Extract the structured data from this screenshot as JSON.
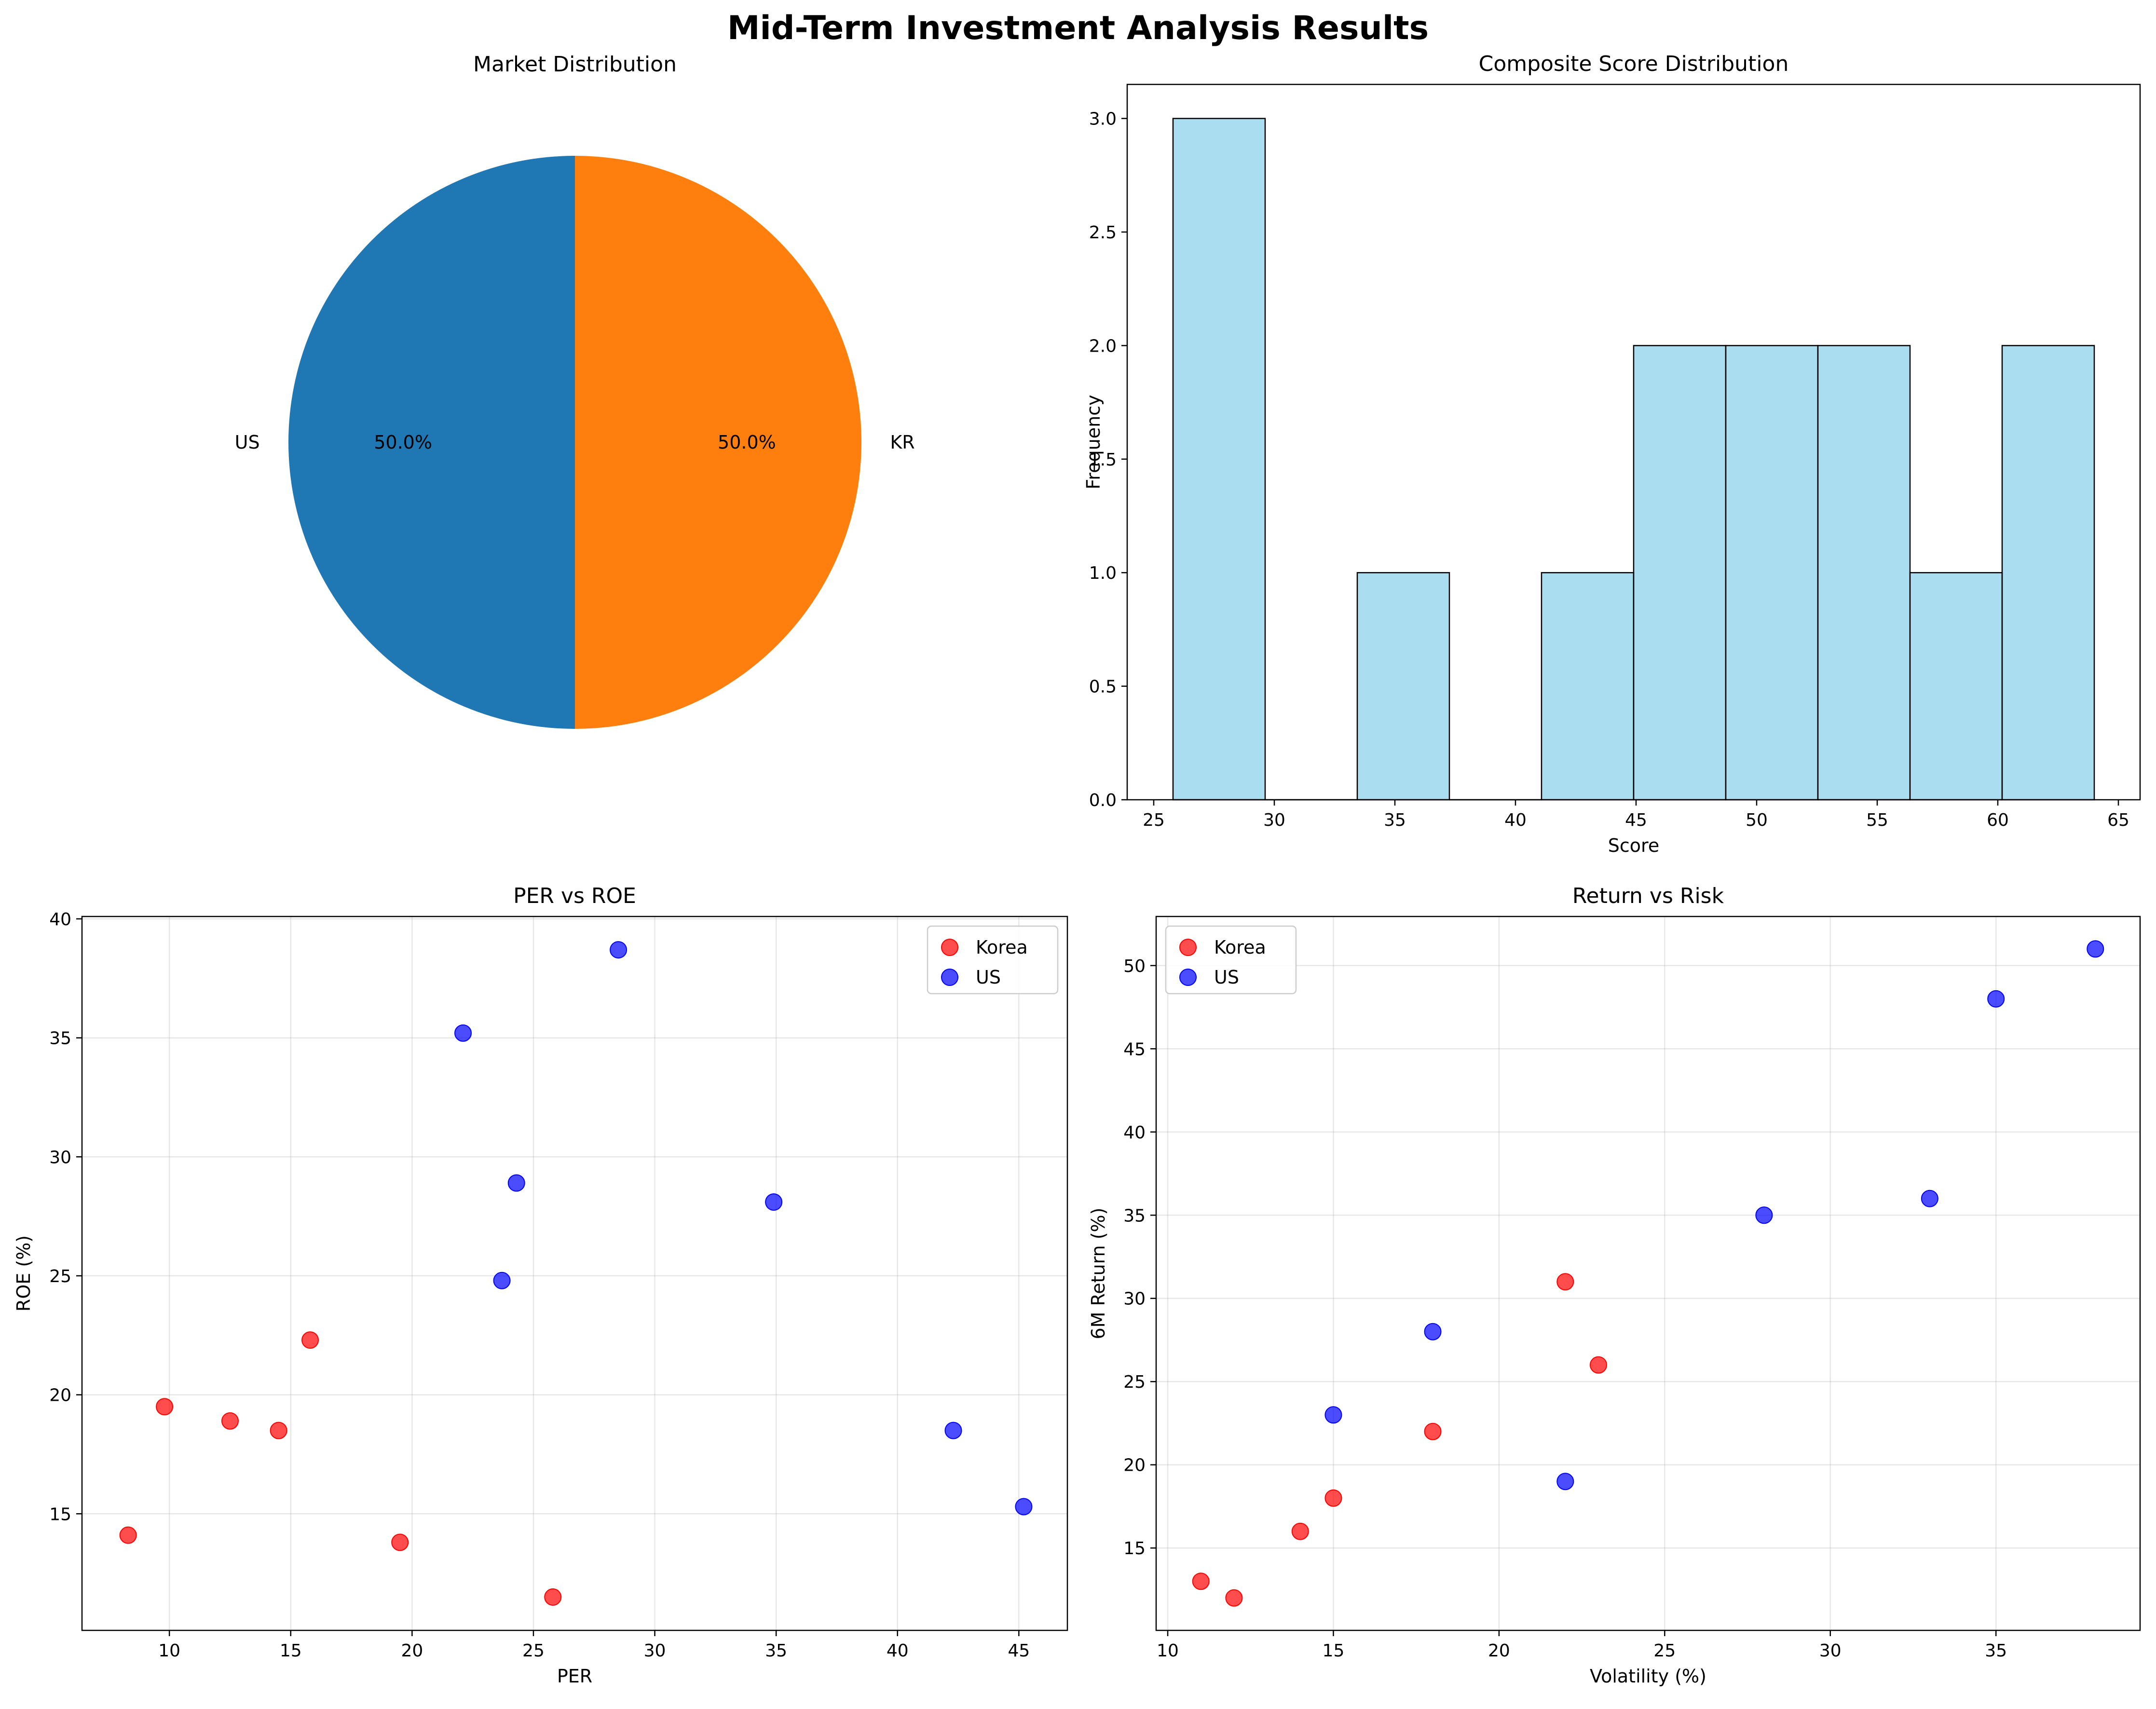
{
  "suptitle": "Mid-Term Investment Analysis Results",
  "chart_data": [
    {
      "type": "pie",
      "title": "Market Distribution",
      "labels": [
        "US",
        "KR"
      ],
      "values": [
        50.0,
        50.0
      ],
      "pct_labels": [
        "50.0%",
        "50.0%"
      ],
      "colors": [
        "#1f77b4",
        "#ff7f0e"
      ]
    },
    {
      "type": "bar",
      "title": "Composite Score Distribution",
      "xlabel": "Score",
      "ylabel": "Frequency",
      "bin_edges": [
        25.8,
        29.62,
        33.44,
        37.26,
        41.08,
        44.9,
        48.72,
        52.54,
        56.36,
        60.18,
        64.0
      ],
      "values": [
        3,
        0,
        1,
        0,
        1,
        2,
        2,
        2,
        1,
        2
      ],
      "xlim": [
        23.9,
        65.9
      ],
      "ylim": [
        0,
        3.15
      ],
      "xticks": [
        25,
        30,
        35,
        40,
        45,
        50,
        55,
        60,
        65
      ],
      "yticks": [
        "0.0",
        "0.5",
        "1.0",
        "1.5",
        "2.0",
        "2.5",
        "3.0"
      ],
      "color": "#87ceeb"
    },
    {
      "type": "scatter",
      "title": "PER vs ROE",
      "xlabel": "PER",
      "ylabel": "ROE (%)",
      "xlim": [
        6.4,
        47.0
      ],
      "ylim": [
        10.1,
        40.1
      ],
      "xticks": [
        10,
        15,
        20,
        25,
        30,
        35,
        40,
        45
      ],
      "yticks": [
        15,
        20,
        25,
        30,
        35,
        40
      ],
      "grid": true,
      "legend": "top-right",
      "series": [
        {
          "name": "Korea",
          "color": "#ff0000",
          "points": [
            [
              8.3,
              14.1
            ],
            [
              9.8,
              19.5
            ],
            [
              12.5,
              18.9
            ],
            [
              14.5,
              18.5
            ],
            [
              15.8,
              22.3
            ],
            [
              19.5,
              13.8
            ],
            [
              25.8,
              11.5
            ]
          ]
        },
        {
          "name": "US",
          "color": "#0000ff",
          "points": [
            [
              22.1,
              35.2
            ],
            [
              28.5,
              38.7
            ],
            [
              24.3,
              28.9
            ],
            [
              23.7,
              24.8
            ],
            [
              34.9,
              28.1
            ],
            [
              42.3,
              18.5
            ],
            [
              45.2,
              15.3
            ]
          ]
        }
      ]
    },
    {
      "type": "scatter",
      "title": "Return vs Risk",
      "xlabel": "Volatility (%)",
      "ylabel": "6M Return (%)",
      "xlim": [
        9.65,
        39.35
      ],
      "ylim": [
        10.05,
        52.95
      ],
      "xticks": [
        10,
        15,
        20,
        25,
        30,
        35
      ],
      "yticks": [
        15,
        20,
        25,
        30,
        35,
        40,
        45,
        50
      ],
      "grid": true,
      "legend": "top-left",
      "series": [
        {
          "name": "Korea",
          "color": "#ff0000",
          "points": [
            [
              11,
              13
            ],
            [
              12,
              12
            ],
            [
              14,
              16
            ],
            [
              15,
              18
            ],
            [
              18,
              22
            ],
            [
              22,
              31
            ],
            [
              23,
              26
            ]
          ]
        },
        {
          "name": "US",
          "color": "#0000ff",
          "points": [
            [
              15,
              23
            ],
            [
              18,
              28
            ],
            [
              22,
              19
            ],
            [
              28,
              35
            ],
            [
              33,
              36
            ],
            [
              35,
              48
            ],
            [
              38,
              51
            ]
          ]
        }
      ]
    }
  ]
}
